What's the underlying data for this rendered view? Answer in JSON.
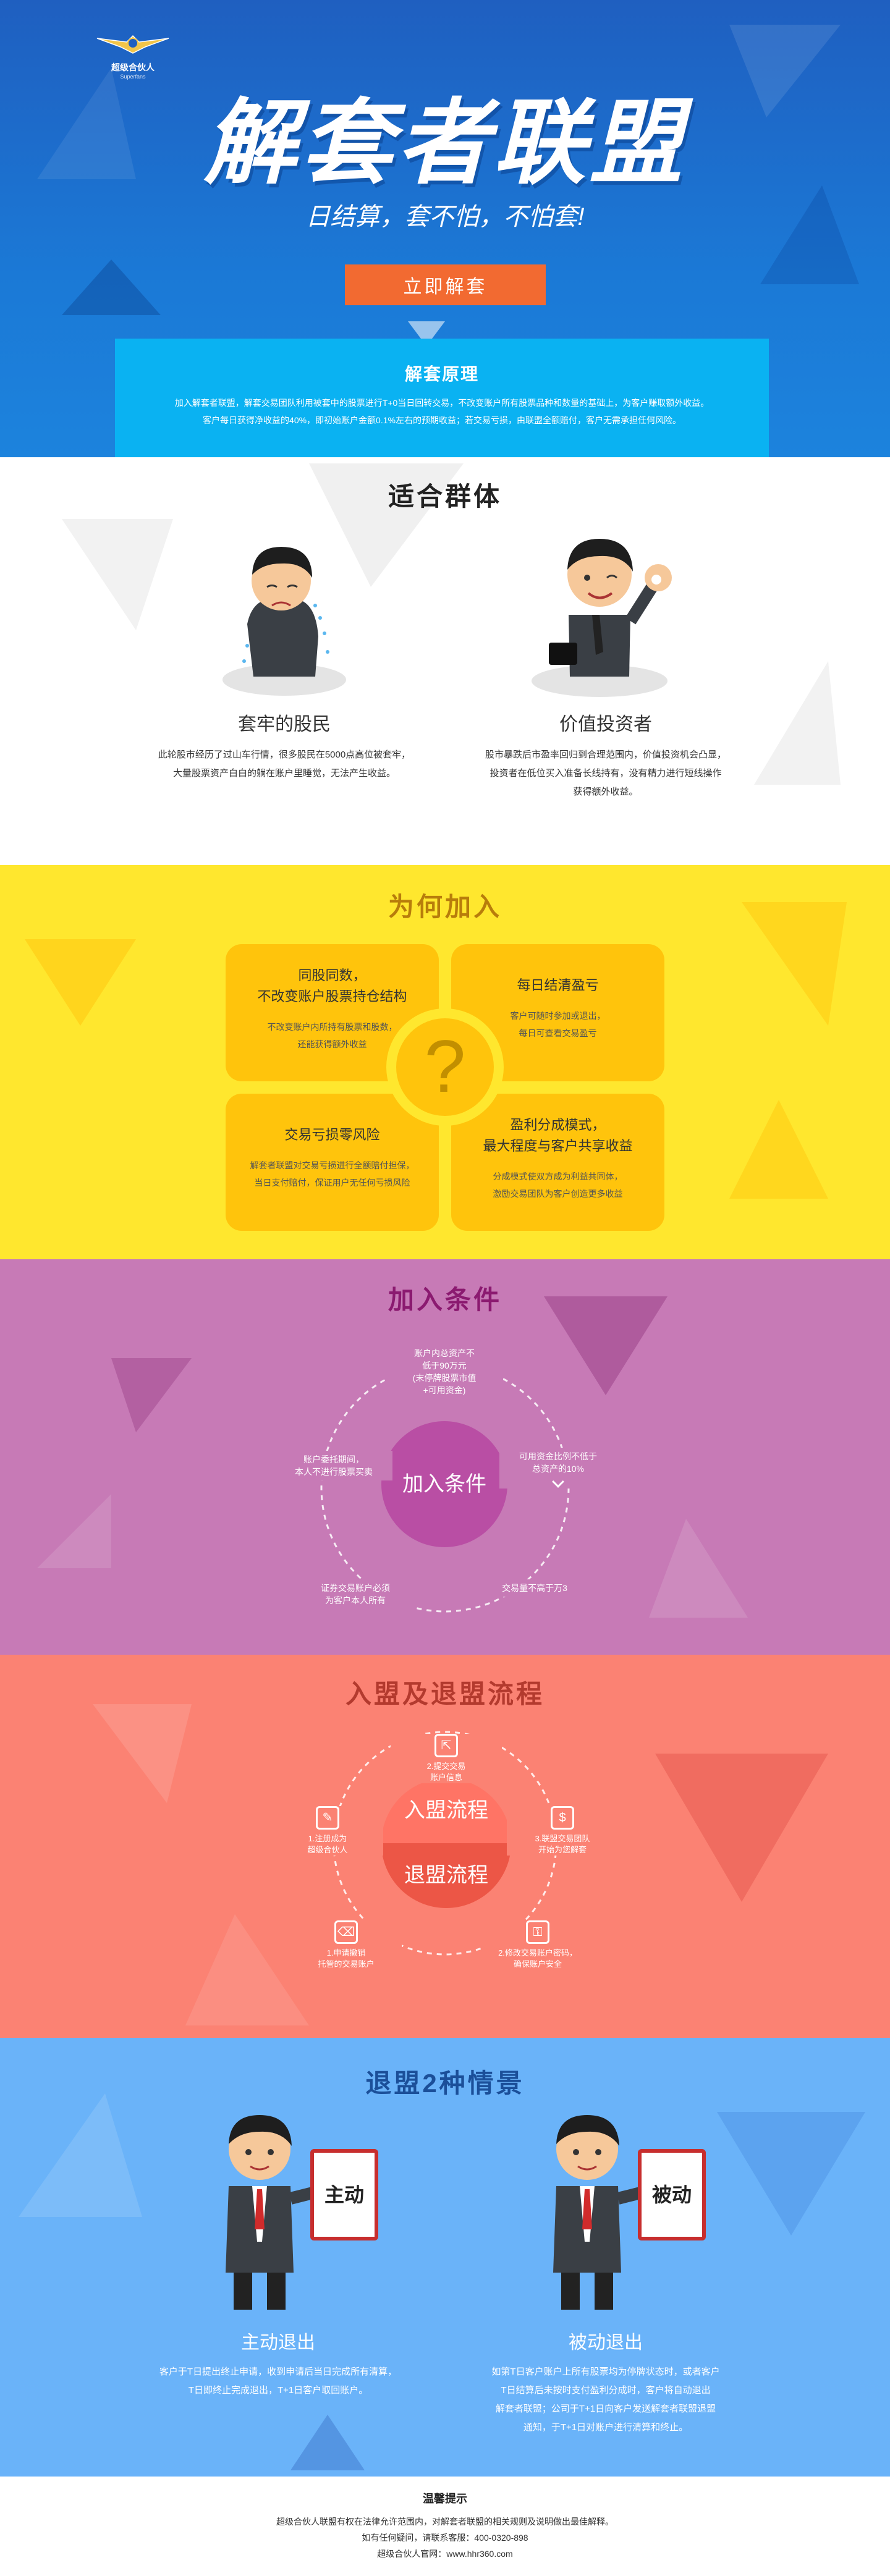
{
  "hero": {
    "logo_brand": "超级合伙人",
    "logo_sub": "Superfans",
    "title": "解套者联盟",
    "subtitle": "日结算，套不怕，不怕套!",
    "cta": "立即解套",
    "principle_title": "解套原理",
    "principle_line1": "加入解套者联盟，解套交易团队利用被套中的股票进行T+0当日回转交易，不改变账户所有股票品种和数量的基础上，为客户赚取额外收益。",
    "principle_line2": "客户每日获得净收益的40%，即初始账户金额0.1%左右的预期收益；若交易亏损，由联盟全额赔付，客户无需承担任何风险。"
  },
  "audience": {
    "title": "适合群体",
    "left_name": "套牢的股民",
    "left_desc1": "此轮股市经历了过山车行情，很多股民在5000点高位被套牢，",
    "left_desc2": "大量股票资产白白的躺在账户里睡觉，无法产生收益。",
    "right_name": "价值投资者",
    "right_desc1": "股市暴跌后市盈率回归到合理范围内，价值投资机会凸显，",
    "right_desc2": "投资者在低位买入准备长线持有，没有精力进行短线操作",
    "right_desc3": "获得额外收益。"
  },
  "why": {
    "title": "为何加入",
    "c1_title1": "同股同数，",
    "c1_title2": "不改变账户股票持仓结构",
    "c1_desc1": "不改变账户内所持有股票和股数，",
    "c1_desc2": "还能获得额外收益",
    "c2_title": "每日结清盈亏",
    "c2_desc1": "客户可随时参加或退出，",
    "c2_desc2": "每日可查看交易盈亏",
    "c3_title": "交易亏损零风险",
    "c3_desc1": "解套者联盟对交易亏损进行全额赔付担保，",
    "c3_desc2": "当日支付赔付，保证用户无任何亏损风险",
    "c4_title1": "盈利分成模式，",
    "c4_title2": "最大程度与客户共享收益",
    "c4_desc1": "分成模式使双方成为利益共同体，",
    "c4_desc2": "激励交易团队为客户创造更多收益",
    "mark": "?"
  },
  "cond": {
    "title": "加入条件",
    "center": "加入条件",
    "i1_l1": "账户内总资产不",
    "i1_l2": "低于90万元",
    "i1_l3": "(末停牌股票市值",
    "i1_l4": "+可用资金)",
    "i2_l1": "可用资金比例不低于",
    "i2_l2": "总资产的10%",
    "i3_l1": "交易量不高于万3",
    "i4_l1": "证券交易账户必须",
    "i4_l2": "为客户本人所有",
    "i5_l1": "账户委托期间，",
    "i5_l2": "本人不进行股票买卖"
  },
  "proc": {
    "title": "入盟及退盟流程",
    "join": "入盟流程",
    "quit": "退盟流程",
    "p1_l1": "1.注册成为",
    "p1_l2": "超级合伙人",
    "p2_l1": "2.提交交易",
    "p2_l2": "账户信息",
    "p3_l1": "3.联盟交易团队",
    "p3_l2": "开始为您解套",
    "q1_l1": "1.申请撤销",
    "q1_l2": "托管的交易账户",
    "q2_l1": "2.修改交易账户密码，",
    "q2_l2": "确保账户安全"
  },
  "exit": {
    "title": "退盟2种情景",
    "left_board": "主动",
    "left_name": "主动退出",
    "left_desc1": "客户于T日提出终止申请，收到申请后当日完成所有清算，",
    "left_desc2": "T日即终止完成退出，T+1日客户取回账户。",
    "right_board": "被动",
    "right_name": "被动退出",
    "right_desc1": "如第T日客户账户上所有股票均为停牌状态时，或者客户",
    "right_desc2": "T日结算后未按时支付盈利分成时，客户将自动退出",
    "right_desc3": "解套者联盟；公司于T+1日向客户发送解套者联盟退盟",
    "right_desc4": "通知，于T+1日对账户进行清算和终止。"
  },
  "footer": {
    "title": "温馨提示",
    "line1": "超级合伙人联盟有权在法律允许范围内，对解套者联盟的相关规则及说明做出最佳解释。",
    "line2": "如有任何疑问，请联系客服：400-0320-898",
    "line3": "超级合伙人官网：www.hhr360.com"
  },
  "colors": {
    "hero_blue": "#1f5fc0",
    "cta_orange": "#f26a31",
    "principle_cyan": "#0ab2f2",
    "why_yellow": "#ffe72e",
    "why_title": "#b87d0b",
    "cond_purple": "#c77ab6",
    "cond_title": "#8b1a70",
    "proc_salmon": "#fb8273",
    "proc_title": "#b33a2e",
    "exit_blue": "#6ab3f9",
    "exit_title": "#1b4f99"
  }
}
